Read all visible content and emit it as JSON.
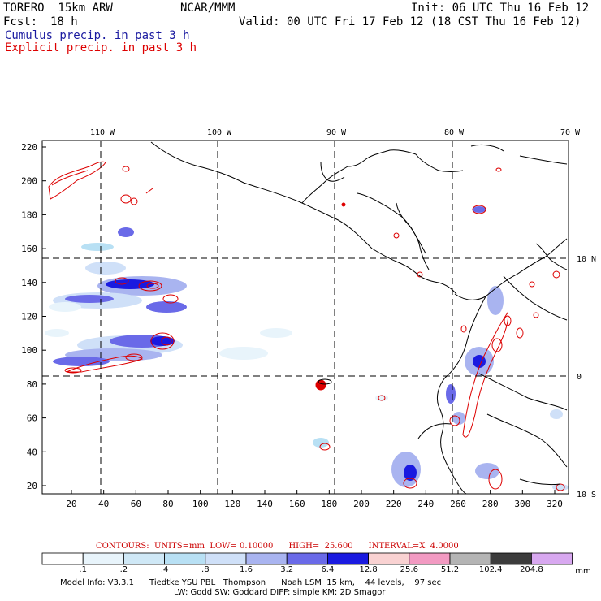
{
  "header": {
    "model": "TORERO  15km ARW",
    "org": "NCAR/MMM",
    "init": "Init: 06 UTC Thu 16 Feb 12",
    "fcst_label": "Fcst:",
    "fcst_value": "18 h",
    "valid": "Valid: 00 UTC Fri 17 Feb 12 (18 CST Thu 16 Feb 12)",
    "line1": "Cumulus precip. in past 3 h",
    "line2": "Explicit precip. in past 3 h",
    "line1_color": "#1a1aa0",
    "line2_color": "#dd0000"
  },
  "map": {
    "top_lon_labels": [
      "110 W",
      "100 W",
      "90 W",
      "80 W",
      "70 W"
    ],
    "right_lat_labels": [
      "10 N",
      "0",
      "10 S"
    ],
    "y_ticks": [
      "20",
      "40",
      "60",
      "80",
      "100",
      "120",
      "140",
      "160",
      "180",
      "200",
      "220"
    ],
    "x_ticks": [
      "20",
      "40",
      "60",
      "80",
      "100",
      "120",
      "140",
      "160",
      "180",
      "200",
      "220",
      "240",
      "260",
      "280",
      "300",
      "320"
    ],
    "land_color": "#000000",
    "grid_color": "#000000",
    "explicit_contour_color": "#dd0000"
  },
  "contours": {
    "text": "CONTOURS:  UNITS=mm  LOW= 0.10000      HIGH=  25.600      INTERVAL=X  4.0000"
  },
  "legend": {
    "labels": [
      ".1",
      ".2",
      ".4",
      ".8",
      "1.6",
      "3.2",
      "6.4",
      "12.8",
      "25.6",
      "51.2",
      "102.4",
      "204.8"
    ],
    "unit": "mm",
    "colors": [
      "#ffffff",
      "#e8f4fb",
      "#cfe8f6",
      "#b8e0f4",
      "#cfe0f8",
      "#a9b4f0",
      "#6a6ae8",
      "#1a1ae0",
      "#f9d2d2",
      "#f29ac2",
      "#b4b4b4",
      "#3c3c3c",
      "#d8a8f0"
    ]
  },
  "info": {
    "line1": "Model Info: V3.3.1      Tiedtke YSU PBL   Thompson      Noah LSM  15 km,    44 levels,    97 sec",
    "line2": "LW: Godd SW: Goddard DIFF: simple KM: 2D Smagor"
  }
}
